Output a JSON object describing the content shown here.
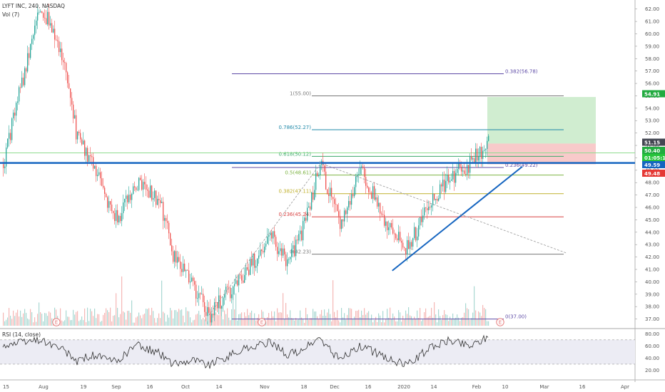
{
  "header": {
    "symbol": "LYFT INC, 240, NASDAQ",
    "volume": "Vol (7)"
  },
  "rsi": {
    "label": "RSI (14, close)",
    "levels": [
      "80.00",
      "60.00",
      "40.00",
      "20.00"
    ]
  },
  "price_ticks": [
    "62.00",
    "61.00",
    "60.00",
    "59.00",
    "58.00",
    "57.00",
    "56.00",
    "55.00",
    "54.00",
    "53.00",
    "52.00",
    "51.00",
    "50.00",
    "49.00",
    "48.00",
    "47.00",
    "46.00",
    "45.00",
    "44.00",
    "43.00",
    "42.00",
    "41.00",
    "40.00",
    "39.00",
    "38.00",
    "37.00"
  ],
  "time_ticks": [
    "15",
    "Aug",
    "19",
    "Sep",
    "16",
    "Oct",
    "14",
    "Nov",
    "18",
    "Dec",
    "16",
    "2020",
    "14",
    "Feb",
    "10",
    "Mar",
    "16",
    "Apr"
  ],
  "price_tags": [
    {
      "label": "54.91",
      "price": 54.91,
      "color": "#22ab40"
    },
    {
      "label": "51.15",
      "price": 51.15,
      "color": "#434651"
    },
    {
      "label": "50.40",
      "price": 50.4,
      "color": "#22ab40"
    },
    {
      "label": "01:05:13",
      "price": 50.1,
      "color": "#26c43b"
    },
    {
      "label": "49.59",
      "price": 49.59,
      "color": "#1565c0"
    },
    {
      "label": "49.48",
      "price": 49.48,
      "color": "#e53935"
    }
  ],
  "fib_levels": [
    {
      "label": "0.382(56.78)",
      "price": 56.78,
      "color": "#5e4ba6"
    },
    {
      "label": "1(55.00)",
      "price": 55.0,
      "color": "#787878"
    },
    {
      "label": "0.786(52.27)",
      "price": 52.27,
      "color": "#1e88a8"
    },
    {
      "label": "0.618(50.12)",
      "price": 50.12,
      "color": "#3aa86a"
    },
    {
      "label": "0.5(48.61)",
      "price": 48.61,
      "color": "#7cb342"
    },
    {
      "label": "0.382(47.11)",
      "price": 47.11,
      "color": "#c0b02c"
    },
    {
      "label": "0.236(45.24)",
      "price": 45.24,
      "color": "#d84040"
    },
    {
      "label": "0(42.23)",
      "price": 42.23,
      "color": "#787878"
    },
    {
      "label": "0(37.00)",
      "price": 37.0,
      "color": "#5e4ba6"
    },
    {
      "label": "0.236(49.22)",
      "price": 49.22,
      "color": "#5e4ba6"
    }
  ],
  "events": [
    "E",
    "E",
    "E"
  ],
  "colors": {
    "up": "#26a69a",
    "down": "#ef5350",
    "trend": "#1565c0",
    "target": "#c8eac8",
    "stop": "#f7c4c4"
  },
  "chart_data": {
    "type": "candlestick",
    "title": "LYFT INC, 240, NASDAQ",
    "price_range": [
      36.4,
      62.5
    ],
    "rsi_range": [
      10,
      85
    ],
    "trade_zone": {
      "target": 54.91,
      "entry": 51.15,
      "stop": 49.48
    },
    "trendline_support": [
      {
        "date": "Dec 30",
        "price": 40.9
      },
      {
        "date": "Feb 6",
        "price": 49.3
      }
    ],
    "trendline_resistance": [
      {
        "date": "Nov 25",
        "price": 49.6
      },
      {
        "date": "Mar 3",
        "price": 42.3
      }
    ],
    "horizontal_line": 49.59,
    "price_path": [
      {
        "date": "Jul 15",
        "price": 49.5
      },
      {
        "date": "Jul 29",
        "price": 62.5
      },
      {
        "date": "Aug 8",
        "price": 58.5
      },
      {
        "date": "Aug 16",
        "price": 51.5
      },
      {
        "date": "Aug 23",
        "price": 49.4
      },
      {
        "date": "Sep 4",
        "price": 45.0
      },
      {
        "date": "Sep 11",
        "price": 48.0
      },
      {
        "date": "Sep 20",
        "price": 46.5
      },
      {
        "date": "Sep 26",
        "price": 42.0
      },
      {
        "date": "Oct 4",
        "price": 39.5
      },
      {
        "date": "Oct 10",
        "price": 37.3
      },
      {
        "date": "Oct 24",
        "price": 40.8
      },
      {
        "date": "Nov 4",
        "price": 43.5
      },
      {
        "date": "Nov 11",
        "price": 41.5
      },
      {
        "date": "Nov 18",
        "price": 44.5
      },
      {
        "date": "Nov 25",
        "price": 49.5
      },
      {
        "date": "Dec 4",
        "price": 44.8
      },
      {
        "date": "Dec 13",
        "price": 48.9
      },
      {
        "date": "Dec 23",
        "price": 45.2
      },
      {
        "date": "Jan 2",
        "price": 42.6
      },
      {
        "date": "Jan 13",
        "price": 46.5
      },
      {
        "date": "Jan 21",
        "price": 48.3
      },
      {
        "date": "Jan 31",
        "price": 49.6
      },
      {
        "date": "Feb 6",
        "price": 51.3
      }
    ],
    "rsi_path": [
      {
        "date": "Jul 15",
        "rsi": 60
      },
      {
        "date": "Jul 29",
        "rsi": 70
      },
      {
        "date": "Aug 8",
        "rsi": 55
      },
      {
        "date": "Aug 16",
        "rsi": 35
      },
      {
        "date": "Aug 23",
        "rsi": 45
      },
      {
        "date": "Sep 4",
        "rsi": 33
      },
      {
        "date": "Sep 11",
        "rsi": 62
      },
      {
        "date": "Sep 20",
        "rsi": 48
      },
      {
        "date": "Sep 26",
        "rsi": 30
      },
      {
        "date": "Oct 4",
        "rsi": 38
      },
      {
        "date": "Oct 10",
        "rsi": 28
      },
      {
        "date": "Oct 24",
        "rsi": 55
      },
      {
        "date": "Nov 4",
        "rsi": 66
      },
      {
        "date": "Nov 11",
        "rsi": 45
      },
      {
        "date": "Nov 18",
        "rsi": 55
      },
      {
        "date": "Nov 25",
        "rsi": 72
      },
      {
        "date": "Dec 4",
        "rsi": 38
      },
      {
        "date": "Dec 13",
        "rsi": 60
      },
      {
        "date": "Dec 23",
        "rsi": 42
      },
      {
        "date": "Jan 2",
        "rsi": 28
      },
      {
        "date": "Jan 13",
        "rsi": 58
      },
      {
        "date": "Jan 21",
        "rsi": 70
      },
      {
        "date": "Jan 31",
        "rsi": 60
      },
      {
        "date": "Feb 6",
        "rsi": 76
      }
    ]
  }
}
